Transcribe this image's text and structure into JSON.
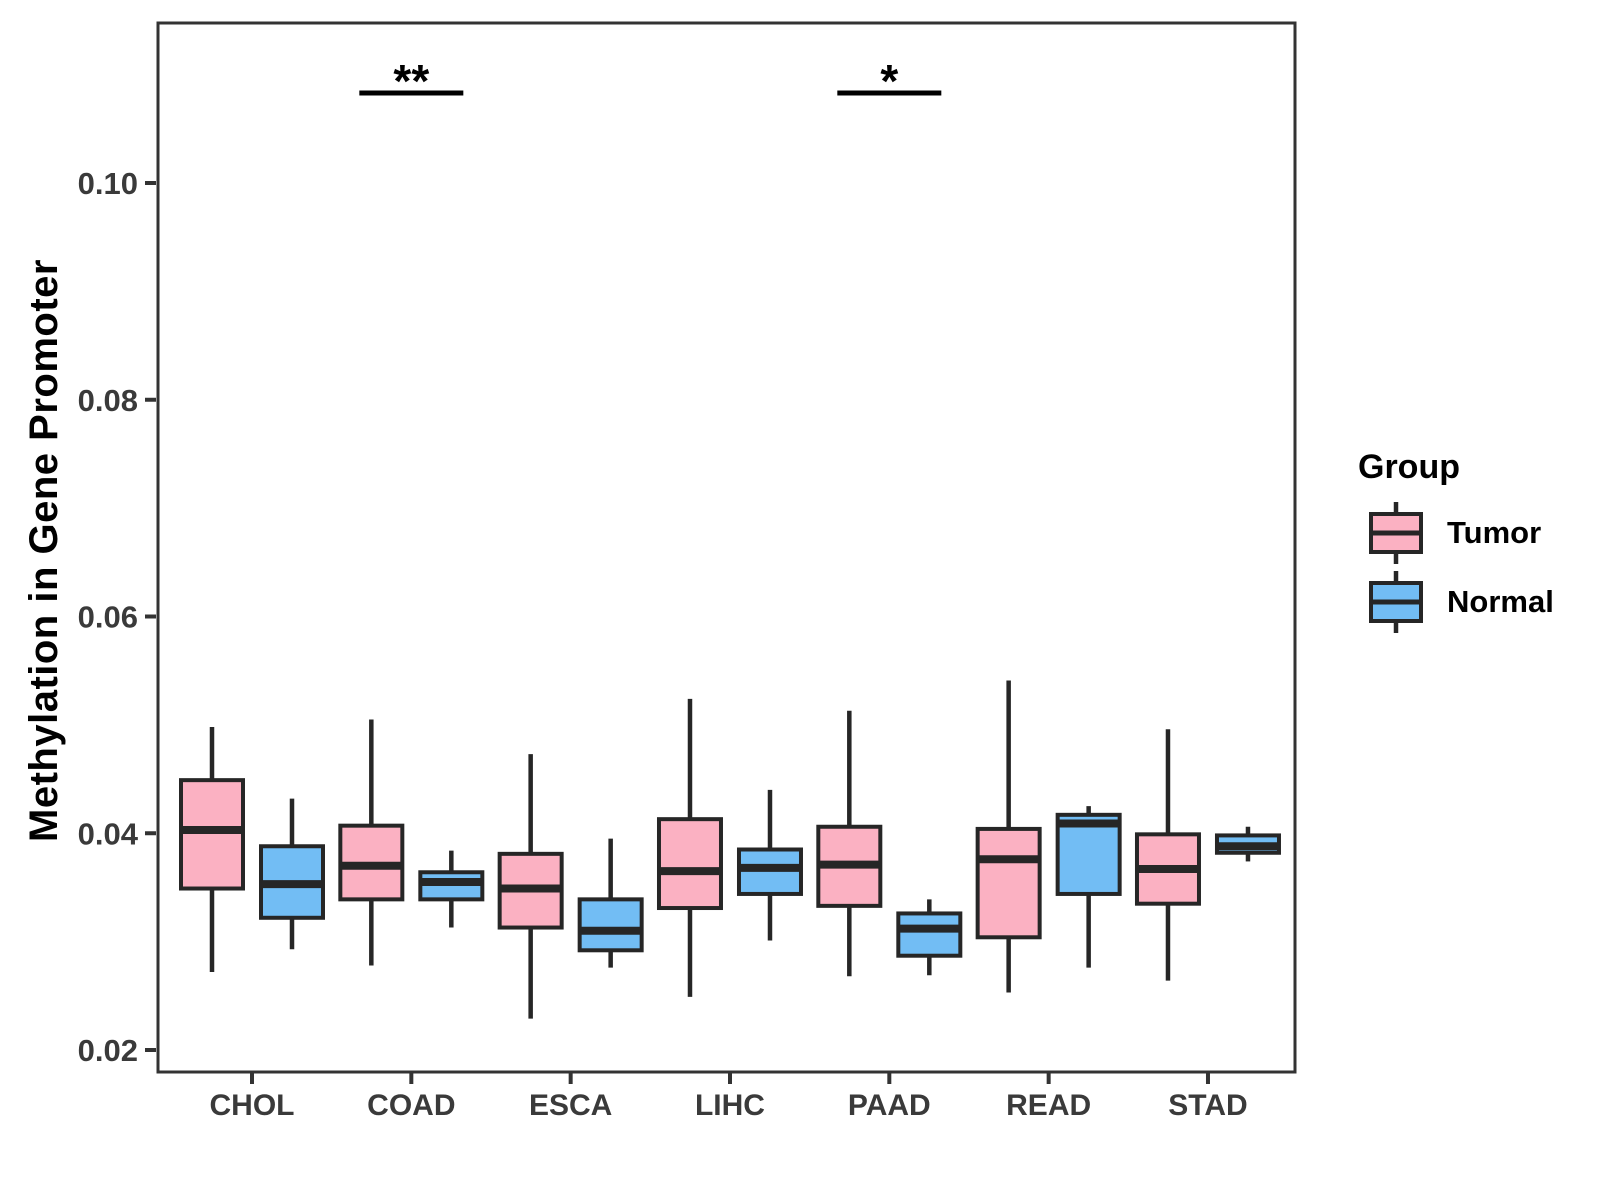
{
  "chart_data": {
    "type": "grouped_boxplot",
    "title": "",
    "xlabel": "",
    "ylabel": "Methylation in Gene Promoter",
    "categories": [
      "CHOL",
      "COAD",
      "ESCA",
      "LIHC",
      "PAAD",
      "READ",
      "STAD"
    ],
    "yticks": [
      "0.02",
      "0.04",
      "0.06",
      "0.08",
      "0.10"
    ],
    "ytick_values": [
      0.02,
      0.04,
      0.06,
      0.08,
      0.1
    ],
    "ylim": [
      0.018,
      0.115
    ],
    "grid": false,
    "colors": {
      "tumor": "#FBB1C2",
      "normal": "#72BDF4",
      "box_stroke": "#262626",
      "axis": "#333333",
      "tick_text": "#3a3a3a"
    },
    "legend": {
      "title": "Group",
      "position": "right",
      "entries": [
        {
          "label": "Tumor",
          "color": "#FBB1C2"
        },
        {
          "label": "Normal",
          "color": "#72BDF4"
        }
      ]
    },
    "series": [
      {
        "name": "Tumor",
        "color": "#FBB1C2",
        "boxes": [
          {
            "category": "CHOL",
            "min": 0.0272,
            "q1": 0.0349,
            "median": 0.0403,
            "q3": 0.0449,
            "max": 0.0498
          },
          {
            "category": "COAD",
            "min": 0.0278,
            "q1": 0.0339,
            "median": 0.037,
            "q3": 0.0407,
            "max": 0.0505
          },
          {
            "category": "ESCA",
            "min": 0.0229,
            "q1": 0.0313,
            "median": 0.0349,
            "q3": 0.0381,
            "max": 0.0473
          },
          {
            "category": "LIHC",
            "min": 0.0249,
            "q1": 0.0331,
            "median": 0.0365,
            "q3": 0.0413,
            "max": 0.0524
          },
          {
            "category": "PAAD",
            "min": 0.0268,
            "q1": 0.0333,
            "median": 0.0371,
            "q3": 0.0406,
            "max": 0.0513
          },
          {
            "category": "READ",
            "min": 0.0253,
            "q1": 0.0304,
            "median": 0.0376,
            "q3": 0.0404,
            "max": 0.0541
          },
          {
            "category": "STAD",
            "min": 0.0264,
            "q1": 0.0335,
            "median": 0.0367,
            "q3": 0.0399,
            "max": 0.0496
          }
        ]
      },
      {
        "name": "Normal",
        "color": "#72BDF4",
        "boxes": [
          {
            "category": "CHOL",
            "min": 0.0293,
            "q1": 0.0322,
            "median": 0.0353,
            "q3": 0.0388,
            "max": 0.0432
          },
          {
            "category": "COAD",
            "min": 0.0313,
            "q1": 0.0339,
            "median": 0.0355,
            "q3": 0.0364,
            "max": 0.0384
          },
          {
            "category": "ESCA",
            "min": 0.0276,
            "q1": 0.0292,
            "median": 0.031,
            "q3": 0.0339,
            "max": 0.0395
          },
          {
            "category": "LIHC",
            "min": 0.0301,
            "q1": 0.0344,
            "median": 0.0368,
            "q3": 0.0385,
            "max": 0.044
          },
          {
            "category": "PAAD",
            "min": 0.0269,
            "q1": 0.0287,
            "median": 0.0312,
            "q3": 0.0326,
            "max": 0.0339
          },
          {
            "category": "READ",
            "min": 0.0276,
            "q1": 0.0344,
            "median": 0.0409,
            "q3": 0.0417,
            "max": 0.0425
          },
          {
            "category": "STAD",
            "min": 0.0374,
            "q1": 0.0382,
            "median": 0.0388,
            "q3": 0.0398,
            "max": 0.0406
          }
        ]
      }
    ],
    "annotations": [
      {
        "category": "COAD",
        "label": "**",
        "bar_y": 0.1083
      },
      {
        "category": "PAAD",
        "label": "*",
        "bar_y": 0.1083
      }
    ]
  }
}
